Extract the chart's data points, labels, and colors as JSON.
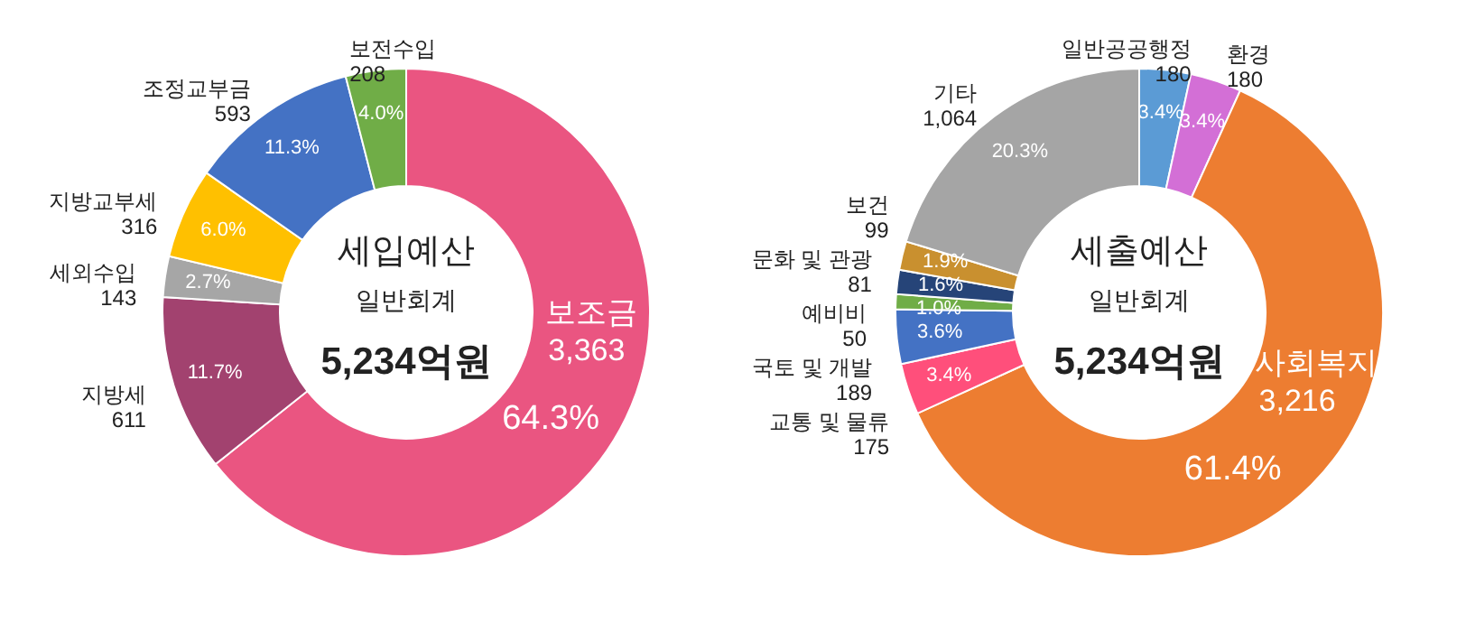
{
  "chart_data": [
    {
      "type": "donut",
      "title": "세입예산",
      "subtitle": "일반회계",
      "annotations": [
        "5,234억원"
      ],
      "categories": [
        "보조금 3,363",
        "지방세 611",
        "세외수입 143",
        "지방교부세 316",
        "조정교부금 593",
        "보전수입 208"
      ],
      "values": [
        64.3,
        11.7,
        2.7,
        6.0,
        11.3,
        4.0
      ],
      "value_labels": [
        "64.3%",
        "11.7%",
        "2.7%",
        "6.0%",
        "11.3%",
        "4.0%"
      ],
      "colors": [
        "#ea5581",
        "#a2426f",
        "#a6a6a6",
        "#ffc000",
        "#4472c4",
        "#70ad47"
      ]
    },
    {
      "type": "donut",
      "title": "세출예산",
      "subtitle": "일반회계",
      "annotations": [
        "5,234억원"
      ],
      "categories": [
        "일반공공행정 180",
        "환경 180",
        "사회복지 3,216",
        "교통 및 물류 175",
        "국토 및 개발 189",
        "예비비 50",
        "문화 및 관광 81",
        "보건 99",
        "기타 1,064"
      ],
      "values": [
        3.4,
        3.4,
        61.4,
        3.4,
        3.6,
        1.0,
        1.6,
        1.9,
        20.3
      ],
      "value_labels": [
        "3.4%",
        "3.4%",
        "61.4%",
        "3.4%",
        "3.6%",
        "1.0%",
        "1.6%",
        "1.9%",
        "20.3%"
      ],
      "colors": [
        "#5b9bd5",
        "#d36fd6",
        "#ed7d31",
        "#ff4f7b",
        "#4472c4",
        "#70ad47",
        "#264478",
        "#c9902f",
        "#a5a5a5"
      ]
    }
  ]
}
